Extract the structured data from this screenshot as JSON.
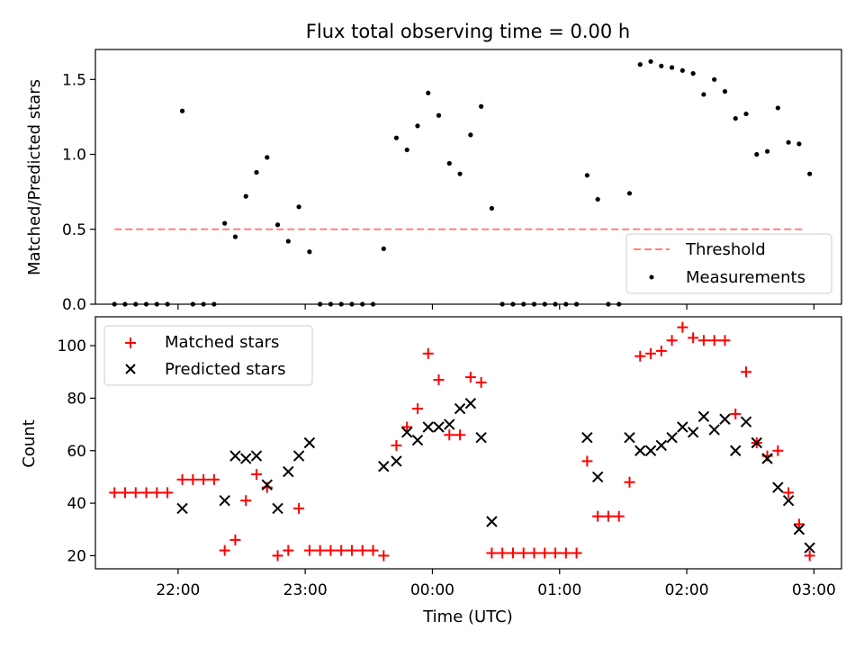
{
  "title": "Flux total observing time = 0.00 h",
  "chart_data": [
    {
      "type": "scatter",
      "ylabel": "Matched/Predicted stars",
      "xlabel": "",
      "xlim": [
        "21:21",
        "03:13"
      ],
      "ylim": [
        0,
        1.7
      ],
      "yticks": [
        0.0,
        0.5,
        1.0,
        1.5
      ],
      "ytick_labels": [
        "0.0",
        "0.5",
        "1.0",
        "1.5"
      ],
      "legend": {
        "placement": "lower-right",
        "items": [
          "Threshold",
          "Measurements"
        ]
      },
      "threshold": {
        "name": "Threshold",
        "value": 0.5,
        "x_range": [
          "21:30",
          "02:55"
        ],
        "color": "#ff8080"
      },
      "series": [
        {
          "name": "Measurements",
          "color": "#000000",
          "points": [
            [
              "21:30",
              0
            ],
            [
              "21:35",
              0
            ],
            [
              "21:40",
              0
            ],
            [
              "21:45",
              0
            ],
            [
              "21:50",
              0
            ],
            [
              "21:55",
              0
            ],
            [
              "22:02",
              1.29
            ],
            [
              "22:07",
              0
            ],
            [
              "22:12",
              0
            ],
            [
              "22:17",
              0
            ],
            [
              "22:22",
              0.54
            ],
            [
              "22:27",
              0.45
            ],
            [
              "22:32",
              0.72
            ],
            [
              "22:37",
              0.88
            ],
            [
              "22:42",
              0.98
            ],
            [
              "22:47",
              0.53
            ],
            [
              "22:52",
              0.42
            ],
            [
              "22:57",
              0.65
            ],
            [
              "23:02",
              0.35
            ],
            [
              "23:07",
              0
            ],
            [
              "23:12",
              0
            ],
            [
              "23:17",
              0
            ],
            [
              "23:22",
              0
            ],
            [
              "23:27",
              0
            ],
            [
              "23:32",
              0
            ],
            [
              "23:37",
              0.37
            ],
            [
              "23:43",
              1.11
            ],
            [
              "23:48",
              1.03
            ],
            [
              "23:53",
              1.19
            ],
            [
              "23:58",
              1.41
            ],
            [
              "00:03",
              1.26
            ],
            [
              "00:08",
              0.94
            ],
            [
              "00:13",
              0.87
            ],
            [
              "00:18",
              1.13
            ],
            [
              "00:23",
              1.32
            ],
            [
              "00:28",
              0.64
            ],
            [
              "00:33",
              0
            ],
            [
              "00:38",
              0
            ],
            [
              "00:43",
              0
            ],
            [
              "00:48",
              0
            ],
            [
              "00:53",
              0
            ],
            [
              "00:58",
              0
            ],
            [
              "01:03",
              0
            ],
            [
              "01:08",
              0
            ],
            [
              "01:13",
              0.86
            ],
            [
              "01:18",
              0.7
            ],
            [
              "01:23",
              0
            ],
            [
              "01:28",
              0
            ],
            [
              "01:33",
              0.74
            ],
            [
              "01:38",
              1.6
            ],
            [
              "01:43",
              1.62
            ],
            [
              "01:48",
              1.59
            ],
            [
              "01:53",
              1.58
            ],
            [
              "01:58",
              1.56
            ],
            [
              "02:03",
              1.54
            ],
            [
              "02:08",
              1.4
            ],
            [
              "02:13",
              1.5
            ],
            [
              "02:18",
              1.42
            ],
            [
              "02:23",
              1.24
            ],
            [
              "02:28",
              1.27
            ],
            [
              "02:33",
              1.0
            ],
            [
              "02:38",
              1.02
            ],
            [
              "02:43",
              1.31
            ],
            [
              "02:48",
              1.08
            ],
            [
              "02:53",
              1.07
            ],
            [
              "02:58",
              0.87
            ]
          ]
        }
      ]
    },
    {
      "type": "scatter",
      "ylabel": "Count",
      "xlabel": "Time (UTC)",
      "xlim": [
        "21:21",
        "03:13"
      ],
      "ylim": [
        15,
        111
      ],
      "yticks": [
        20,
        40,
        60,
        80,
        100
      ],
      "ytick_labels": [
        "20",
        "40",
        "60",
        "80",
        "100"
      ],
      "xticks": [
        "22:00",
        "23:00",
        "00:00",
        "01:00",
        "02:00",
        "03:00"
      ],
      "xtick_labels": [
        "22:00",
        "23:00",
        "00:00",
        "01:00",
        "02:00",
        "03:00"
      ],
      "legend": {
        "placement": "upper-left",
        "items": [
          "Matched stars",
          "Predicted stars"
        ]
      },
      "series": [
        {
          "name": "Matched stars",
          "marker": "+",
          "color": "#ff0000",
          "points": [
            [
              "21:30",
              44
            ],
            [
              "21:35",
              44
            ],
            [
              "21:40",
              44
            ],
            [
              "21:45",
              44
            ],
            [
              "21:50",
              44
            ],
            [
              "21:55",
              44
            ],
            [
              "22:02",
              49
            ],
            [
              "22:07",
              49
            ],
            [
              "22:12",
              49
            ],
            [
              "22:17",
              49
            ],
            [
              "22:22",
              22
            ],
            [
              "22:27",
              26
            ],
            [
              "22:32",
              41
            ],
            [
              "22:37",
              51
            ],
            [
              "22:42",
              46
            ],
            [
              "22:47",
              20
            ],
            [
              "22:52",
              22
            ],
            [
              "22:57",
              38
            ],
            [
              "23:02",
              22
            ],
            [
              "23:07",
              22
            ],
            [
              "23:12",
              22
            ],
            [
              "23:17",
              22
            ],
            [
              "23:22",
              22
            ],
            [
              "23:27",
              22
            ],
            [
              "23:32",
              22
            ],
            [
              "23:37",
              20
            ],
            [
              "23:43",
              62
            ],
            [
              "23:48",
              69
            ],
            [
              "23:53",
              76
            ],
            [
              "23:58",
              97
            ],
            [
              "00:03",
              87
            ],
            [
              "00:08",
              66
            ],
            [
              "00:13",
              66
            ],
            [
              "00:18",
              88
            ],
            [
              "00:23",
              86
            ],
            [
              "00:28",
              21
            ],
            [
              "00:33",
              21
            ],
            [
              "00:38",
              21
            ],
            [
              "00:43",
              21
            ],
            [
              "00:48",
              21
            ],
            [
              "00:53",
              21
            ],
            [
              "00:58",
              21
            ],
            [
              "01:03",
              21
            ],
            [
              "01:08",
              21
            ],
            [
              "01:13",
              56
            ],
            [
              "01:18",
              35
            ],
            [
              "01:23",
              35
            ],
            [
              "01:28",
              35
            ],
            [
              "01:33",
              48
            ],
            [
              "01:38",
              96
            ],
            [
              "01:43",
              97
            ],
            [
              "01:48",
              98
            ],
            [
              "01:53",
              102
            ],
            [
              "01:58",
              107
            ],
            [
              "02:03",
              103
            ],
            [
              "02:08",
              102
            ],
            [
              "02:13",
              102
            ],
            [
              "02:18",
              102
            ],
            [
              "02:23",
              74
            ],
            [
              "02:28",
              90
            ],
            [
              "02:33",
              63
            ],
            [
              "02:38",
              58
            ],
            [
              "02:43",
              60
            ],
            [
              "02:48",
              44
            ],
            [
              "02:53",
              32
            ],
            [
              "02:58",
              20
            ]
          ]
        },
        {
          "name": "Predicted stars",
          "marker": "x",
          "color": "#000000",
          "points": [
            [
              "22:02",
              38
            ],
            [
              "22:22",
              41
            ],
            [
              "22:27",
              58
            ],
            [
              "22:32",
              57
            ],
            [
              "22:37",
              58
            ],
            [
              "22:42",
              47
            ],
            [
              "22:47",
              38
            ],
            [
              "22:52",
              52
            ],
            [
              "22:57",
              58
            ],
            [
              "23:02",
              63
            ],
            [
              "23:37",
              54
            ],
            [
              "23:43",
              56
            ],
            [
              "23:48",
              67
            ],
            [
              "23:53",
              64
            ],
            [
              "23:58",
              69
            ],
            [
              "00:03",
              69
            ],
            [
              "00:08",
              70
            ],
            [
              "00:13",
              76
            ],
            [
              "00:18",
              78
            ],
            [
              "00:23",
              65
            ],
            [
              "00:28",
              33
            ],
            [
              "01:13",
              65
            ],
            [
              "01:18",
              50
            ],
            [
              "01:33",
              65
            ],
            [
              "01:38",
              60
            ],
            [
              "01:43",
              60
            ],
            [
              "01:48",
              62
            ],
            [
              "01:53",
              65
            ],
            [
              "01:58",
              69
            ],
            [
              "02:03",
              67
            ],
            [
              "02:08",
              73
            ],
            [
              "02:13",
              68
            ],
            [
              "02:18",
              72
            ],
            [
              "02:23",
              60
            ],
            [
              "02:28",
              71
            ],
            [
              "02:33",
              63
            ],
            [
              "02:38",
              57
            ],
            [
              "02:43",
              46
            ],
            [
              "02:48",
              41
            ],
            [
              "02:53",
              30
            ],
            [
              "02:58",
              23
            ]
          ]
        }
      ]
    }
  ]
}
